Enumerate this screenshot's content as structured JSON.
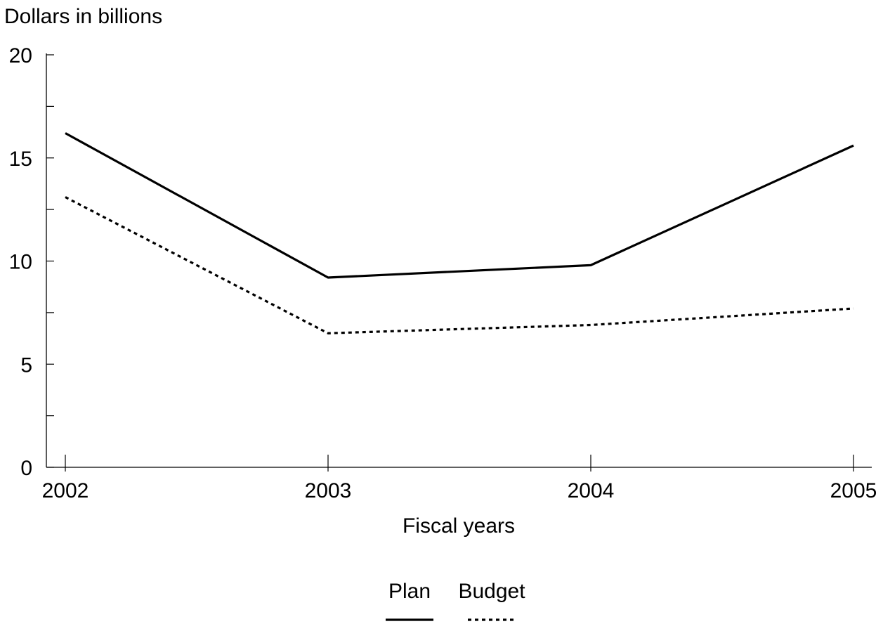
{
  "chart_data": {
    "type": "line",
    "title": "",
    "ylabel": "Dollars in billions",
    "xlabel": "Fiscal years",
    "x": [
      "2002",
      "2003",
      "2004",
      "2005"
    ],
    "ylim": [
      0,
      20
    ],
    "yticks": [
      0,
      5,
      10,
      15,
      20
    ],
    "yminor": [
      2.5,
      7.5,
      12.5,
      17.5
    ],
    "grid": false,
    "legend": "bottom-center",
    "series": [
      {
        "name": "Plan",
        "values": [
          16.2,
          9.2,
          9.8,
          15.6
        ],
        "style": "solid",
        "color": "#000000"
      },
      {
        "name": "Budget",
        "values": [
          13.1,
          6.5,
          6.9,
          7.7
        ],
        "style": "dotted",
        "color": "#000000"
      }
    ]
  }
}
